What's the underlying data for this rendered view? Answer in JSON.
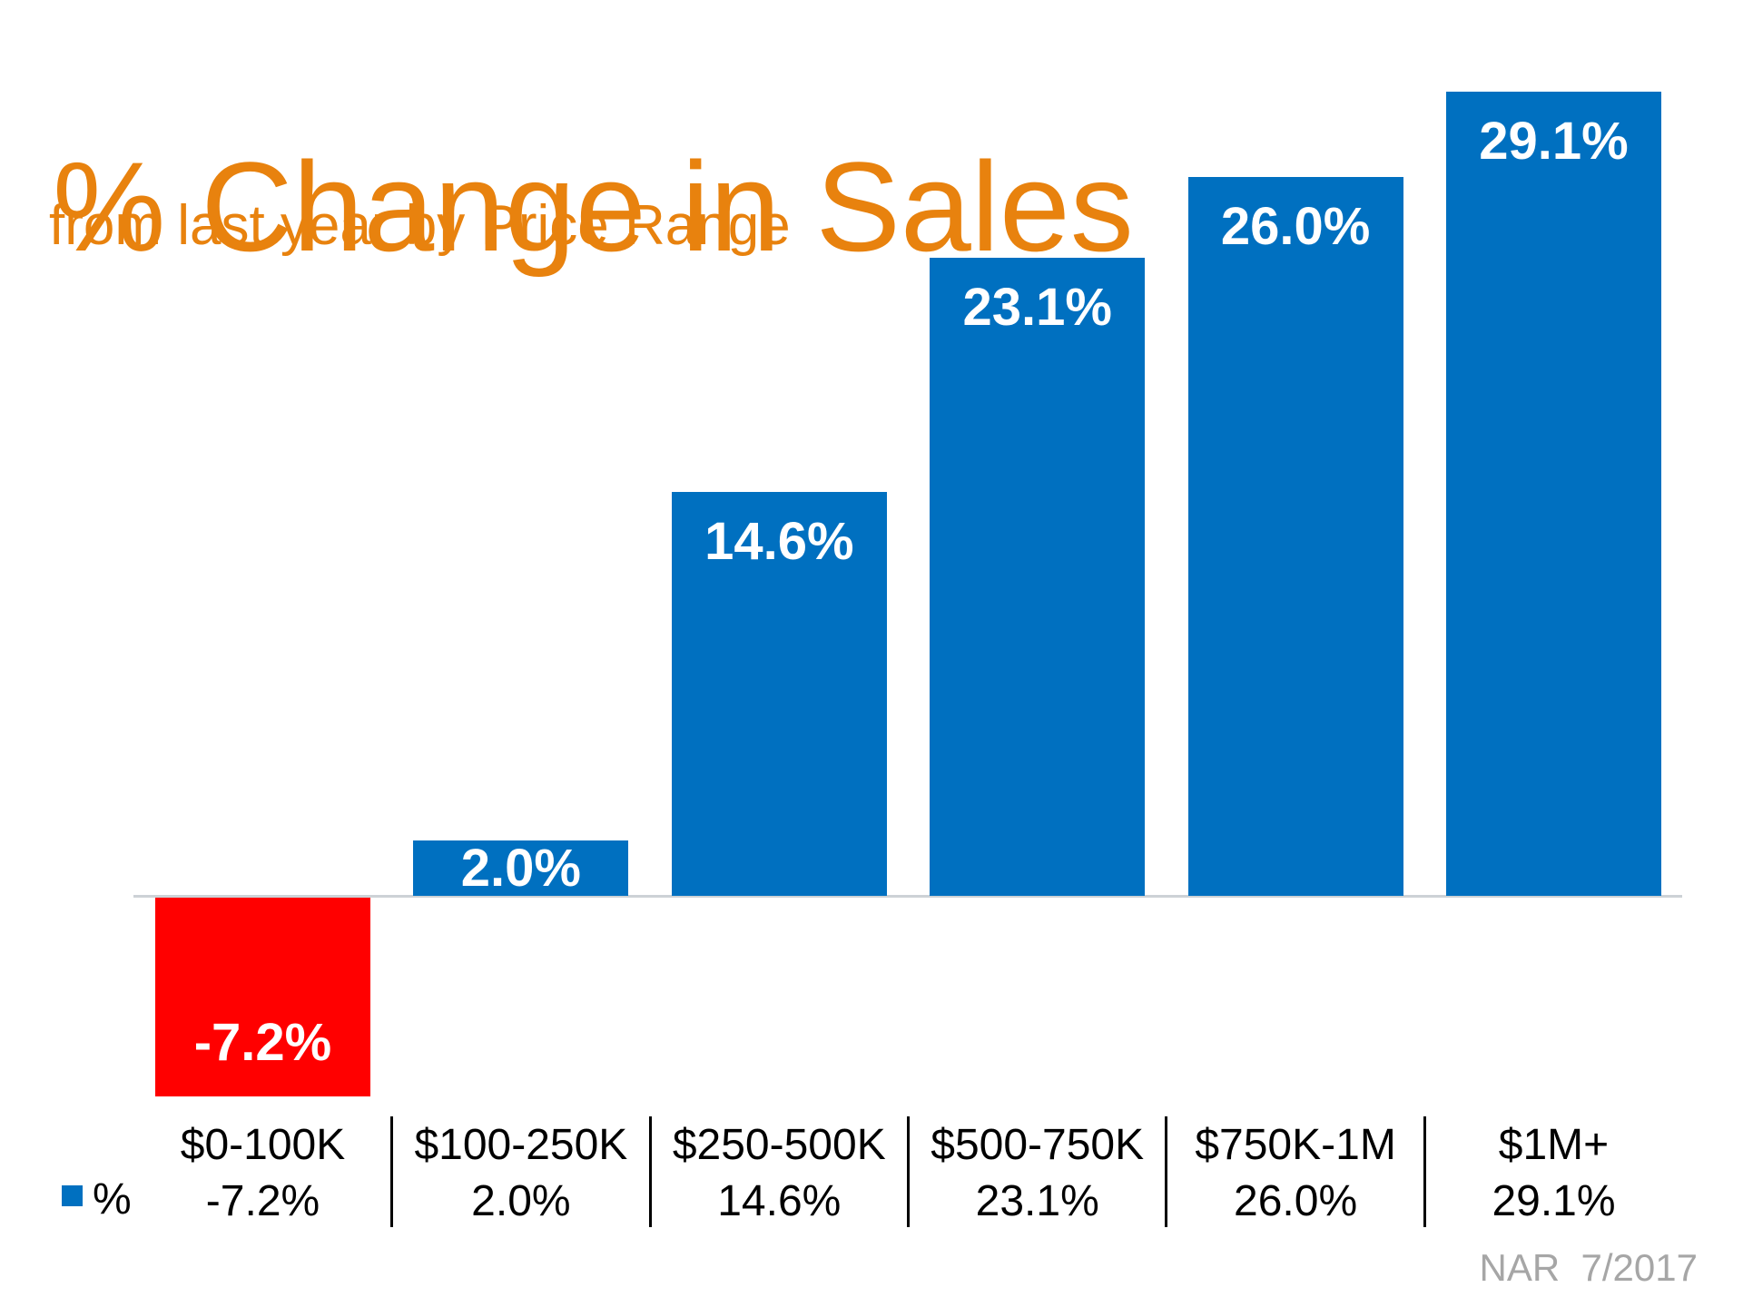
{
  "title": "% Change in Sales",
  "subtitle": "from last year by Price Range",
  "legend": {
    "label": "%"
  },
  "footer": {
    "source": "NAR  7/2017"
  },
  "colors": {
    "title_orange": "#E8820E",
    "bar_blue": "#0070C0",
    "bar_negative_red": "#FF0000",
    "value_label_white": "#FFFFFF",
    "axis_line_gray": "#CDD2D6",
    "table_text_black": "#000000",
    "divider_black": "#000000",
    "footer_gray": "#A6A6A6"
  },
  "chart_data": {
    "type": "bar",
    "title": "% Change in Sales",
    "subtitle": "from last year by Price Range",
    "categories": [
      "$0-100K",
      "$100-250K",
      "$250-500K",
      "$500-750K",
      "$750K-1M",
      "$1M+"
    ],
    "series": [
      {
        "name": "%",
        "values": [
          -7.2,
          2.0,
          14.6,
          23.1,
          26.0,
          29.1
        ]
      }
    ],
    "value_labels": [
      "-7.2%",
      "2.0%",
      "14.6%",
      "23.1%",
      "26.0%",
      "29.1%"
    ],
    "ylim": [
      -7.2,
      29.1
    ],
    "baseline": 0,
    "grid": false,
    "legend_position": "bottom-left",
    "source": "NAR 7/2017"
  }
}
